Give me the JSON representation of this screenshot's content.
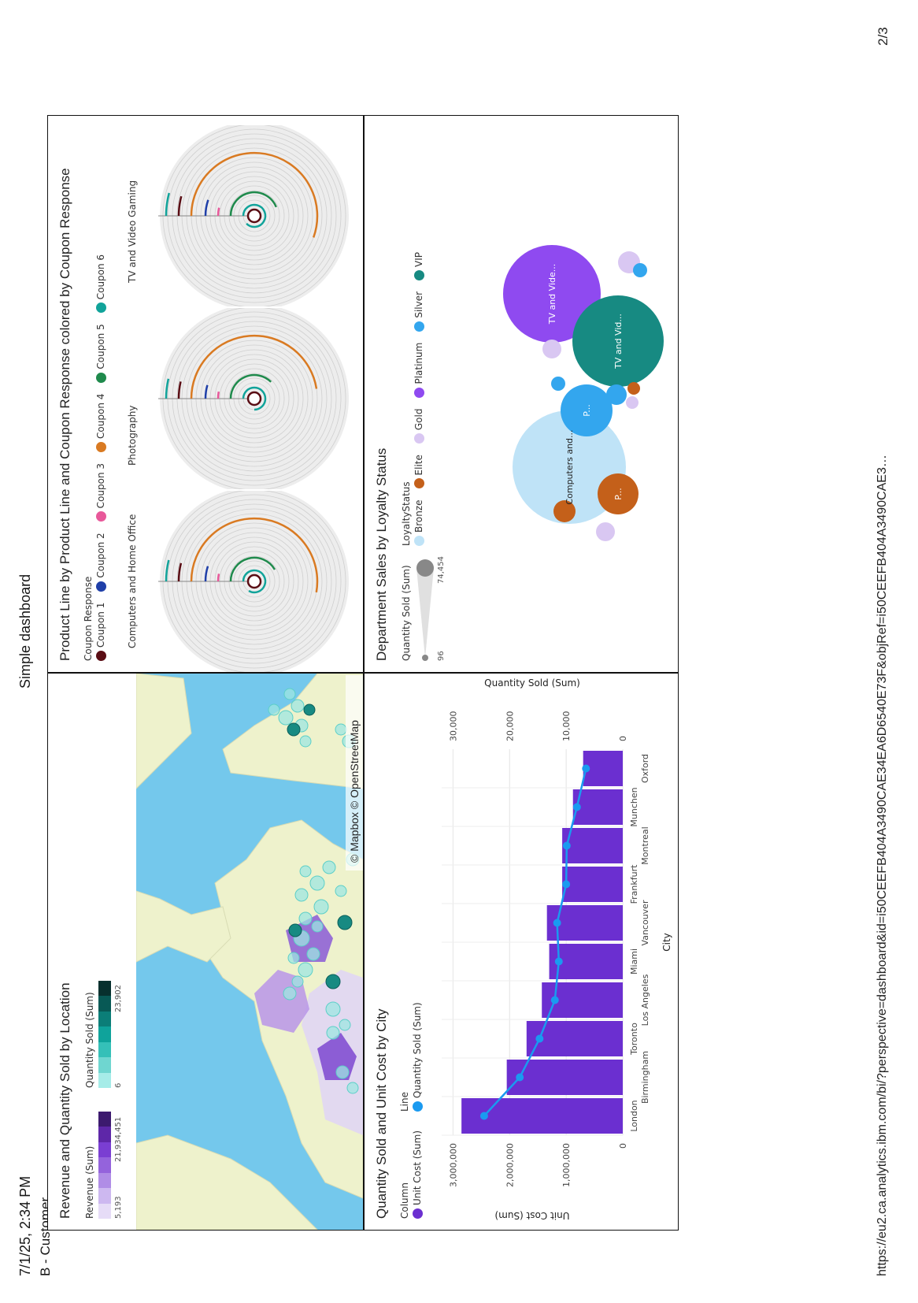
{
  "header": {
    "timestamp": "7/1/25, 2:34 PM",
    "center_title": "Simple dashboard"
  },
  "dashboard": {
    "tab_name": "B - Customer"
  },
  "footer": {
    "url": "https://eu2.ca.analytics.ibm.com/bi/?perspective=dashboard&id=i50CEEFB404A3490CAE34EA6D6540E73F&objRef=i50CEEFB404A3490CAE3…",
    "page": "2/3"
  },
  "map_panel": {
    "title": "Revenue and Quantity Sold by Location",
    "legend_revenue": {
      "label": "Revenue (Sum)",
      "min": "5,193",
      "max": "21,934,451",
      "colors": [
        "#e6dcf7",
        "#cdb8f0",
        "#b08de6",
        "#9463dc",
        "#7a3ed2",
        "#5e27a8",
        "#3c1a6e"
      ]
    },
    "legend_quantity": {
      "label": "Quantity Sold (Sum)",
      "min": "6",
      "max": "23,902",
      "colors": [
        "#a6ece8",
        "#6fd6d0",
        "#35c0b8",
        "#0fa39b",
        "#0b7e78",
        "#085955",
        "#07302e"
      ]
    },
    "attribution": "© Mapbox © OpenStreetMap"
  },
  "radial_panel": {
    "title": "Product Line by Product Line and Coupon Response colored by Coupon Response",
    "legend_title": "Coupon Response",
    "legend": [
      {
        "label": "Coupon 1",
        "color": "#5a0d14"
      },
      {
        "label": "Coupon 2",
        "color": "#1f3fa8"
      },
      {
        "label": "Coupon 3",
        "color": "#e8589a"
      },
      {
        "label": "Coupon 4",
        "color": "#d97a22"
      },
      {
        "label": "Coupon 5",
        "color": "#1f8a4c"
      },
      {
        "label": "Coupon 6",
        "color": "#11a39a"
      }
    ],
    "charts": [
      {
        "label": "Computers and Home Office"
      },
      {
        "label": "Photography"
      },
      {
        "label": "TV and Video Gaming"
      }
    ]
  },
  "combo_panel": {
    "title": "Quantity Sold and Unit Cost by City",
    "legend_column_title": "Column",
    "legend_column": "Unit Cost (Sum)",
    "legend_line_title": "Line",
    "legend_line": "Quantity Sold (Sum)",
    "bar_color": "#6b2fd0",
    "line_color": "#1a9af0",
    "y_left_label": "Unit Cost (Sum)",
    "y_right_label": "Quantity Sold (Sum)",
    "x_label": "City",
    "y_left_ticks": [
      "0",
      "1,000,000",
      "2,000,000",
      "3,000,000"
    ],
    "y_right_ticks": [
      "0",
      "10,000",
      "20,000",
      "30,000"
    ]
  },
  "bubble_panel": {
    "title": "Department Sales by Loyalty Status",
    "size_legend_title": "Quantity Sold (Sum)",
    "size_min": "96",
    "size_max": "74,454",
    "color_legend_title": "LoyaltyStatus",
    "legend": [
      {
        "label": "Bronze",
        "color": "#bfe3f7"
      },
      {
        "label": "Elite",
        "color": "#c4601a"
      },
      {
        "label": "Gold",
        "color": "#d9c7f2"
      },
      {
        "label": "Platinum",
        "color": "#8f4af0"
      },
      {
        "label": "Silver",
        "color": "#33a6ee"
      },
      {
        "label": "VIP",
        "color": "#178a82"
      }
    ],
    "bubbles": [
      {
        "label": "Computers and...",
        "status": "Bronze"
      },
      {
        "label": "TV and Vide...",
        "status": "Platinum"
      },
      {
        "label": "TV and Vid...",
        "status": "VIP"
      },
      {
        "label": "P...",
        "status": "Silver"
      },
      {
        "label": "P...",
        "status": "Elite"
      }
    ]
  },
  "chart_data": {
    "type": "bar",
    "title": "Quantity Sold and Unit Cost by City",
    "xlabel": "City",
    "ylabel": "Unit Cost (Sum)",
    "y2label": "Quantity Sold (Sum)",
    "categories": [
      "London",
      "Birmingham",
      "Toronto",
      "Los Angeles",
      "Miami",
      "Vancouver",
      "Frankfurt",
      "Montreal",
      "Munchen",
      "Oxford"
    ],
    "series": [
      {
        "name": "Unit Cost (Sum)",
        "type": "bar",
        "axis": "left",
        "values": [
          2850000,
          2050000,
          1700000,
          1430000,
          1300000,
          1340000,
          1070000,
          1070000,
          880000,
          700000
        ]
      },
      {
        "name": "Quantity Sold (Sum)",
        "type": "line",
        "axis": "right",
        "values": [
          24500,
          18200,
          14700,
          12000,
          11300,
          11600,
          10000,
          9900,
          8100,
          6500
        ]
      }
    ],
    "ylim": [
      0,
      3200000
    ],
    "y2lim": [
      0,
      32000
    ]
  }
}
